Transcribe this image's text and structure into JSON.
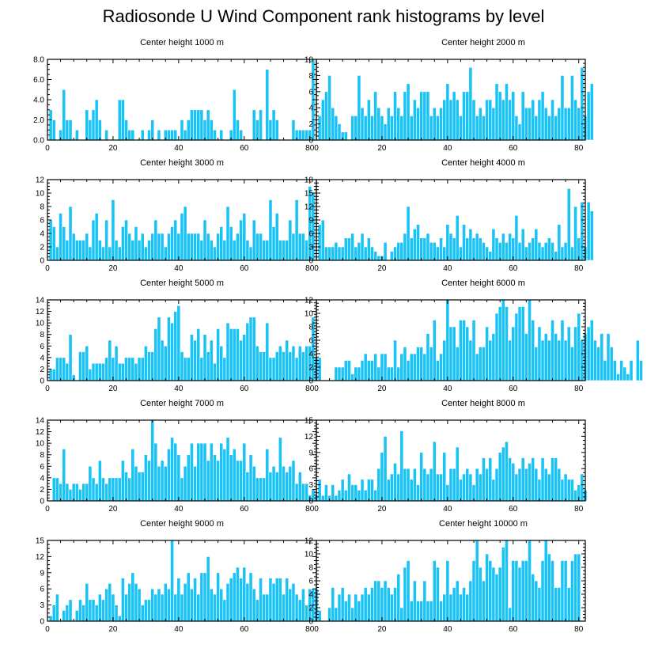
{
  "title": "Radiosonde U Wind Component rank histograms by level",
  "colors": {
    "bar": "#19c3f5",
    "bar_edge": "#ffffff",
    "axis": "#000000"
  },
  "chart_data": [
    {
      "type": "bar",
      "title": "Center height 1000 m",
      "x_ticks": [
        0,
        20,
        40,
        60,
        80
      ],
      "y_ticks": [
        0,
        2,
        4,
        6,
        8
      ],
      "y_tick_labels": [
        "0.0",
        "2.0",
        "4.0",
        "6.0",
        "8.0"
      ],
      "ylim": [
        0,
        8
      ],
      "values": [
        3,
        2,
        0,
        1,
        5,
        2,
        2,
        0,
        1,
        0,
        0,
        3,
        2,
        3,
        4,
        2,
        0,
        1,
        0,
        0,
        0,
        4,
        4,
        2,
        1,
        1,
        0,
        0,
        1,
        0,
        1,
        2,
        0,
        1,
        0,
        1,
        1,
        1,
        1,
        0,
        2,
        1,
        2,
        3,
        3,
        3,
        3,
        2,
        3,
        2,
        1,
        0,
        1,
        0,
        0,
        1,
        5,
        2,
        1,
        0,
        0,
        0,
        3,
        2,
        3,
        0,
        7,
        2,
        3,
        2,
        0,
        0,
        0,
        0,
        2,
        1,
        1,
        1,
        1,
        1,
        8
      ]
    },
    {
      "type": "bar",
      "title": "Center height 2000 m",
      "x_ticks": [
        0,
        20,
        40,
        60,
        80
      ],
      "y_ticks": [
        0,
        2,
        4,
        6,
        8,
        10
      ],
      "y_tick_labels": [
        "0",
        "2",
        "4",
        "6",
        "8",
        "10"
      ],
      "ylim": [
        0,
        10
      ],
      "values": [
        3,
        5,
        6,
        8,
        4,
        3,
        2,
        1,
        1,
        0,
        3,
        3,
        8,
        4,
        3,
        5,
        3,
        6,
        4,
        3,
        2,
        4,
        3,
        6,
        4,
        3,
        6,
        7,
        3,
        5,
        4,
        6,
        6,
        6,
        3,
        4,
        3,
        4,
        5,
        7,
        5,
        6,
        5,
        3,
        6,
        6,
        9,
        5,
        3,
        4,
        3,
        5,
        5,
        4,
        7,
        6,
        5,
        7,
        5,
        6,
        3,
        2,
        6,
        4,
        4,
        5,
        3,
        5,
        6,
        4,
        3,
        5,
        3,
        4,
        8,
        4,
        4,
        8,
        5,
        4,
        9,
        3,
        6,
        7
      ]
    },
    {
      "type": "bar",
      "title": "Center height 3000 m",
      "x_ticks": [
        0,
        20,
        40,
        60,
        80
      ],
      "y_ticks": [
        0,
        2,
        4,
        6,
        8,
        10,
        12
      ],
      "y_tick_labels": [
        "0",
        "2",
        "4",
        "6",
        "8",
        "10",
        "12"
      ],
      "ylim": [
        0,
        12
      ],
      "values": [
        6,
        5,
        2,
        7,
        5,
        3,
        8,
        4,
        3,
        3,
        3,
        4,
        2,
        6,
        7,
        3,
        2,
        6,
        2,
        9,
        3,
        2,
        5,
        6,
        4,
        3,
        5,
        3,
        4,
        2,
        3,
        4,
        6,
        4,
        4,
        2,
        4,
        5,
        6,
        4,
        7,
        8,
        4,
        4,
        4,
        4,
        3,
        6,
        4,
        3,
        2,
        4,
        5,
        3,
        8,
        5,
        3,
        4,
        6,
        7,
        3,
        2,
        6,
        4,
        4,
        3,
        3,
        9,
        5,
        7,
        3,
        3,
        3,
        6,
        4,
        9,
        4,
        4,
        3,
        11,
        10
      ]
    },
    {
      "type": "bar",
      "title": "Center height 4000 m",
      "x_ticks": [
        0,
        20,
        40,
        60,
        80
      ],
      "y_ticks": [
        0,
        3,
        6,
        9,
        12,
        15,
        18
      ],
      "y_tick_labels": [
        "0",
        "3",
        "6",
        "9",
        "12",
        "15",
        "18"
      ],
      "ylim": [
        0,
        18
      ],
      "values": [
        8,
        9,
        3,
        3,
        3,
        4,
        3,
        3,
        5,
        5,
        6,
        3,
        4,
        6,
        3,
        5,
        3,
        2,
        1,
        1,
        4,
        0,
        2,
        3,
        4,
        4,
        6,
        12,
        5,
        7,
        8,
        5,
        5,
        6,
        4,
        4,
        3,
        5,
        3,
        8,
        6,
        5,
        10,
        3,
        8,
        5,
        7,
        5,
        6,
        5,
        4,
        3,
        2,
        7,
        5,
        4,
        6,
        4,
        6,
        5,
        10,
        4,
        7,
        3,
        4,
        5,
        7,
        4,
        3,
        4,
        5,
        4,
        2,
        8,
        3,
        4,
        16,
        3,
        12,
        5,
        13,
        3,
        13,
        11
      ]
    },
    {
      "type": "bar",
      "title": "Center height 5000 m",
      "x_ticks": [
        0,
        20,
        40,
        60,
        80
      ],
      "y_ticks": [
        0,
        2,
        4,
        6,
        8,
        10,
        12,
        14
      ],
      "y_tick_labels": [
        "0",
        "2",
        "4",
        "6",
        "8",
        "10",
        "12",
        "14"
      ],
      "ylim": [
        0,
        14
      ],
      "values": [
        2,
        2,
        4,
        4,
        4,
        3,
        8,
        1,
        0,
        5,
        5,
        6,
        2,
        3,
        3,
        3,
        3,
        4,
        7,
        4,
        6,
        3,
        3,
        4,
        4,
        4,
        3,
        4,
        4,
        6,
        5,
        5,
        9,
        11,
        7,
        6,
        11,
        10,
        12,
        13,
        5,
        4,
        4,
        8,
        7,
        9,
        4,
        8,
        5,
        7,
        3,
        9,
        6,
        4,
        10,
        9,
        9,
        9,
        7,
        8,
        10,
        11,
        11,
        6,
        5,
        5,
        10,
        4,
        4,
        5,
        6,
        5,
        7,
        5,
        6,
        4,
        6,
        5,
        6,
        6,
        11,
        4,
        4
      ]
    },
    {
      "type": "bar",
      "title": "Center height 6000 m",
      "x_ticks": [
        0,
        20,
        40,
        60,
        80
      ],
      "y_ticks": [
        0,
        2,
        4,
        6,
        8,
        10,
        12
      ],
      "y_tick_labels": [
        "0",
        "2",
        "4",
        "6",
        "8",
        "10",
        "12"
      ],
      "ylim": [
        0,
        12
      ],
      "values": [
        0,
        0,
        0,
        0,
        0,
        2,
        2,
        2,
        3,
        3,
        1,
        2,
        2,
        3,
        4,
        3,
        3,
        4,
        2,
        4,
        4,
        2,
        2,
        6,
        2,
        4,
        5,
        3,
        4,
        4,
        5,
        5,
        4,
        7,
        5,
        9,
        3,
        4,
        6,
        12,
        8,
        8,
        5,
        9,
        9,
        8,
        6,
        9,
        4,
        5,
        5,
        8,
        6,
        7,
        10,
        11,
        12,
        11,
        6,
        8,
        10,
        11,
        11,
        7,
        12,
        9,
        5,
        8,
        6,
        7,
        6,
        9,
        7,
        6,
        9,
        6,
        8,
        5,
        8,
        10,
        6,
        7,
        8,
        9,
        6,
        5,
        7,
        3,
        7,
        5,
        3,
        1,
        3,
        2,
        1,
        3,
        0,
        6,
        3,
        0
      ]
    },
    {
      "type": "bar",
      "title": "Center height 7000 m",
      "x_ticks": [
        0,
        20,
        40,
        60,
        80
      ],
      "y_ticks": [
        0,
        2,
        4,
        6,
        8,
        10,
        12,
        14
      ],
      "y_tick_labels": [
        "0",
        "2",
        "4",
        "6",
        "8",
        "10",
        "12",
        "14"
      ],
      "ylim": [
        0,
        14
      ],
      "values": [
        0,
        4,
        4,
        3,
        9,
        3,
        2,
        3,
        3,
        2,
        3,
        3,
        6,
        4,
        3,
        7,
        4,
        3,
        4,
        4,
        4,
        4,
        7,
        5,
        4,
        9,
        6,
        5,
        5,
        8,
        7,
        14,
        10,
        6,
        7,
        6,
        9,
        11,
        10,
        8,
        4,
        6,
        8,
        10,
        6,
        10,
        10,
        10,
        7,
        10,
        8,
        7,
        10,
        9,
        11,
        8,
        9,
        7,
        7,
        10,
        5,
        8,
        6,
        4,
        4,
        4,
        9,
        5,
        6,
        5,
        11,
        6,
        5,
        6,
        7,
        3,
        5,
        3,
        3,
        1,
        2,
        1
      ]
    },
    {
      "type": "bar",
      "title": "Center height 8000 m",
      "x_ticks": [
        0,
        20,
        40,
        60,
        80
      ],
      "y_ticks": [
        0,
        3,
        6,
        9,
        12,
        15
      ],
      "y_tick_labels": [
        "0",
        "3",
        "6",
        "9",
        "12",
        "15"
      ],
      "ylim": [
        0,
        15
      ],
      "values": [
        4,
        1,
        3,
        1,
        3,
        1,
        2,
        4,
        2,
        5,
        3,
        3,
        2,
        4,
        2,
        4,
        4,
        2,
        6,
        9,
        12,
        4,
        5,
        7,
        5,
        13,
        6,
        6,
        4,
        6,
        3,
        9,
        6,
        5,
        6,
        11,
        5,
        5,
        9,
        3,
        6,
        6,
        10,
        4,
        5,
        6,
        5,
        3,
        6,
        5,
        8,
        6,
        8,
        4,
        6,
        9,
        10,
        11,
        8,
        7,
        5,
        6,
        8,
        6,
        7,
        8,
        6,
        4,
        8,
        6,
        5,
        8,
        8,
        6,
        4,
        5,
        4,
        4,
        2,
        3,
        5,
        2
      ]
    },
    {
      "type": "bar",
      "title": "Center height 9000 m",
      "x_ticks": [
        0,
        20,
        40,
        60,
        80
      ],
      "y_ticks": [
        0,
        3,
        6,
        9,
        12,
        15
      ],
      "y_tick_labels": [
        "0",
        "3",
        "6",
        "9",
        "12",
        "15"
      ],
      "ylim": [
        0,
        15
      ],
      "values": [
        1,
        3,
        5,
        0,
        2,
        3,
        4,
        0,
        2,
        4,
        3,
        7,
        4,
        4,
        3,
        5,
        4,
        6,
        7,
        5,
        3,
        1,
        8,
        5,
        7,
        9,
        7,
        6,
        3,
        4,
        4,
        6,
        5,
        6,
        5,
        7,
        6,
        15,
        5,
        8,
        5,
        7,
        9,
        6,
        8,
        5,
        9,
        9,
        12,
        6,
        5,
        9,
        6,
        4,
        7,
        8,
        9,
        10,
        8,
        10,
        7,
        9,
        6,
        4,
        8,
        5,
        5,
        8,
        7,
        8,
        8,
        5,
        8,
        6,
        7,
        5,
        4,
        6,
        3,
        6,
        6,
        6,
        2
      ]
    },
    {
      "type": "bar",
      "title": "Center height 10000 m",
      "x_ticks": [
        0,
        20,
        40,
        60,
        80
      ],
      "y_ticks": [
        0,
        2,
        4,
        6,
        8,
        10,
        12
      ],
      "y_tick_labels": [
        "0",
        "2",
        "4",
        "6",
        "8",
        "10",
        "12"
      ],
      "ylim": [
        0,
        12
      ],
      "values": [
        0,
        0,
        0,
        2,
        5,
        2,
        4,
        5,
        3,
        4,
        2,
        4,
        3,
        4,
        5,
        4,
        5,
        6,
        6,
        5,
        6,
        5,
        4,
        5,
        7,
        2,
        8,
        9,
        3,
        6,
        3,
        3,
        6,
        3,
        3,
        9,
        8,
        3,
        4,
        9,
        4,
        5,
        6,
        4,
        5,
        4,
        6,
        9,
        12,
        8,
        6,
        10,
        9,
        8,
        7,
        8,
        11,
        12,
        2,
        9,
        9,
        8,
        9,
        9,
        12,
        7,
        6,
        5,
        9,
        12,
        10,
        9,
        5,
        5,
        9,
        9,
        5,
        9,
        10,
        10
      ]
    }
  ]
}
